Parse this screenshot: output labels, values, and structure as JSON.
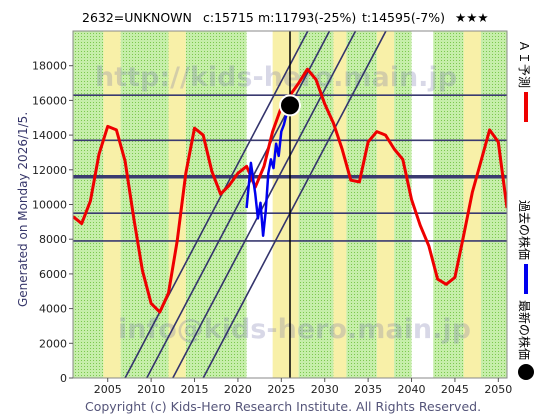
{
  "header": {
    "code_name": "2632=UNKNOWN",
    "c_text": "c:15715",
    "m_text": "m:11793(-25%)",
    "t_text": "t:14595(-7%)",
    "stars": "★★★"
  },
  "side_label": "Generated on Monday 2026/1/5.",
  "footer": "Copyright (c) Kids-Hero Research Institute. All Rights Reserved.",
  "watermarks": [
    "http://kids-hero.main.jp",
    "info@kids-hero.main.jp"
  ],
  "legend": [
    {
      "label": "ＡＩ予測",
      "color": "#ee0000",
      "symbol": "line"
    },
    {
      "label": "過去の株価",
      "color": "#0000ee",
      "symbol": "line"
    },
    {
      "label": "最新の株価",
      "color": "#000000",
      "symbol": "dot"
    }
  ],
  "colors": {
    "background_light": "#ffffff",
    "band_green": "#a8e07a",
    "band_yellow": "#f8f0a8",
    "ai_line": "#ee0000",
    "past_line": "#0000ee",
    "levels": "#3a3a70",
    "trend_lines": "#34346c"
  },
  "chart_data": {
    "type": "line",
    "xlim": [
      2001,
      2051
    ],
    "ylim": [
      0,
      20000
    ],
    "x_ticks": [
      "2005",
      "2010",
      "2015",
      "2020",
      "2025",
      "2030",
      "2035",
      "2040",
      "2045",
      "2050"
    ],
    "y_ticks": [
      "0",
      "2000",
      "4000",
      "6000",
      "8000",
      "10000",
      "12000",
      "14000",
      "16000",
      "18000"
    ],
    "horizontal_levels": [
      16300,
      13700,
      11600,
      9500,
      7900
    ],
    "thick_level": 11600,
    "latest_point": {
      "x": 2026.0,
      "y": 15715
    },
    "latest_marker_x": 2026.0,
    "trend_lines": [
      {
        "x": [
          2007.0,
          2035.0
        ],
        "y": [
          0,
          26600
        ]
      },
      {
        "x": [
          2009.5,
          2037.5
        ],
        "y": [
          0,
          26600
        ]
      },
      {
        "x": [
          2012.5,
          2040.5
        ],
        "y": [
          0,
          26600
        ]
      },
      {
        "x": [
          2016.0,
          2044.0
        ],
        "y": [
          0,
          26600
        ]
      }
    ],
    "series": [
      {
        "name": "ＡＩ予測",
        "x": [
          2001.0,
          2002.0,
          2003.0,
          2004.0,
          2005.0,
          2006.0,
          2007.0,
          2008.0,
          2009.0,
          2010.0,
          2011.0,
          2012.0,
          2013.0,
          2014.0,
          2015.0,
          2016.0,
          2017.0,
          2018.0,
          2019.0,
          2020.0,
          2021.0,
          2022.0,
          2023.0,
          2024.0,
          2025.0,
          2026.0,
          2027.0,
          2028.0,
          2029.0,
          2030.0,
          2031.0,
          2032.0,
          2033.0,
          2034.0,
          2035.0,
          2036.0,
          2037.0,
          2038.0,
          2039.0,
          2040.0,
          2041.0,
          2042.0,
          2043.0,
          2044.0,
          2045.0,
          2046.0,
          2047.0,
          2048.0,
          2049.0,
          2050.0,
          2051.0
        ],
        "y": [
          9300,
          8900,
          10200,
          12900,
          14500,
          14300,
          12500,
          9200,
          6200,
          4300,
          3800,
          4900,
          7900,
          11800,
          14400,
          14000,
          11900,
          10600,
          11100,
          11800,
          12200,
          11000,
          12200,
          14200,
          15600,
          16300,
          17000,
          17800,
          17200,
          15800,
          14700,
          13200,
          11400,
          11300,
          13600,
          14200,
          14000,
          13200,
          12600,
          10300,
          8800,
          7600,
          5700,
          5400,
          5800,
          8200,
          10700,
          12500,
          14300,
          13600,
          9800
        ]
      },
      {
        "name": "過去の株価",
        "x": [
          2021.0,
          2021.5,
          2022.0,
          2022.3,
          2022.6,
          2022.9,
          2023.2,
          2023.5,
          2023.8,
          2024.1,
          2024.4,
          2024.7,
          2025.0,
          2025.3,
          2025.6,
          2026.0
        ],
        "y": [
          9800,
          12400,
          10600,
          9200,
          10100,
          8200,
          9600,
          11800,
          12600,
          12100,
          13500,
          12800,
          14200,
          14600,
          15200,
          15715
        ]
      }
    ]
  }
}
